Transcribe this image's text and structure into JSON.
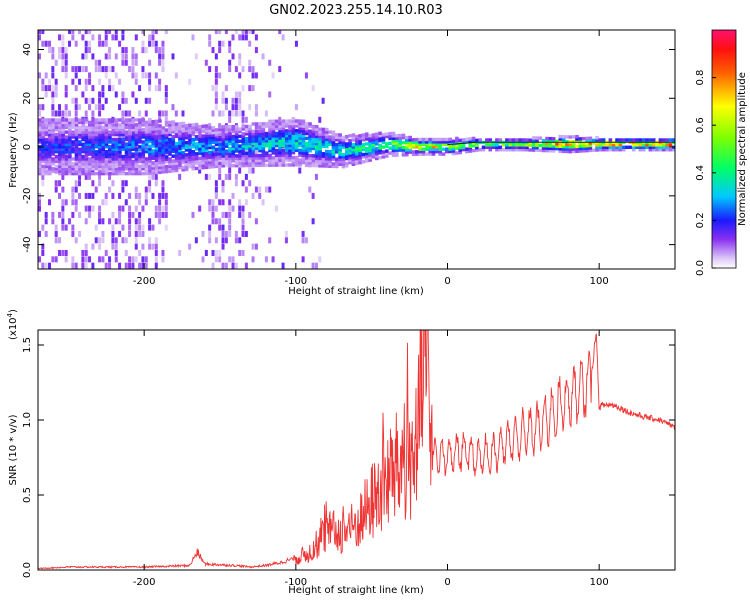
{
  "title": "GN02.2023.255.14.10.R03",
  "colors": {
    "snr_line": "#ef3434",
    "ridge": "#ff2a2a",
    "background": "#ffffff"
  },
  "chart_data": [
    {
      "type": "heatmap",
      "xlabel": "Height of straight line (km)",
      "ylabel": "Frequency (Hz)",
      "xlim": [
        -270,
        150
      ],
      "ylim": [
        -50,
        48
      ],
      "x_ticks": [
        -200,
        -100,
        0,
        100
      ],
      "y_ticks": [
        -40,
        -20,
        0,
        20,
        40
      ],
      "x_tick_labels": [
        "-200",
        "-100",
        "0",
        "100"
      ],
      "y_tick_labels": [
        "-40",
        "-20",
        "0",
        "20",
        "40"
      ],
      "grid": false,
      "colorbar": {
        "label": "Normalized spectral amplitude",
        "range": [
          0,
          1
        ],
        "ticks": [
          0.0,
          0.2,
          0.4,
          0.6,
          0.8
        ],
        "tick_labels": [
          "0.0",
          "0.2",
          "0.4",
          "0.6",
          "0.8"
        ]
      },
      "ridge": {
        "description_points_x": [
          -270,
          -200,
          -150,
          -100,
          -70,
          -40,
          -20,
          0,
          20,
          50,
          80,
          100,
          150
        ],
        "peak_frequency_hz": [
          0,
          0,
          0,
          2,
          -2,
          1,
          0,
          0,
          1,
          1,
          1,
          1,
          1
        ],
        "band_halfwidth_hz": [
          7,
          7,
          5,
          6,
          4,
          3,
          2,
          2,
          1.5,
          1.5,
          2,
          1.5,
          1.5
        ],
        "amplitude": [
          0.2,
          0.25,
          0.3,
          0.35,
          0.35,
          0.45,
          0.7,
          0.6,
          0.5,
          0.55,
          0.8,
          0.7,
          0.8
        ]
      }
    },
    {
      "type": "line",
      "xlabel": "Height of straight line (km)",
      "ylabel": "SNR (10 * v/v)",
      "y_multiplier": "(x10",
      "y_multiplier_exp": "4",
      "y_multiplier_close": ")",
      "xlim": [
        -270,
        150
      ],
      "ylim": [
        0,
        1.6
      ],
      "x_ticks": [
        -200,
        -100,
        0,
        100
      ],
      "y_ticks": [
        0.0,
        0.5,
        1.0,
        1.5
      ],
      "x_tick_labels": [
        "-200",
        "-100",
        "0",
        "100"
      ],
      "y_tick_labels": [
        "0.0",
        "0.5",
        "1.0",
        "1.5"
      ],
      "grid": false,
      "series": [
        {
          "x": [
            -270,
            -250,
            -200,
            -170,
            -165,
            -160,
            -140,
            -130,
            -120,
            -110,
            -100,
            -90,
            -80,
            -70,
            -60,
            -50,
            -40,
            -30,
            -20,
            -15,
            -10,
            0,
            10,
            20,
            30,
            40,
            50,
            60,
            70,
            80,
            90,
            95,
            98,
            100,
            102,
            110,
            120,
            130,
            140,
            150
          ],
          "y": [
            0.01,
            0.02,
            0.02,
            0.03,
            0.12,
            0.04,
            0.03,
            0.02,
            0.03,
            0.05,
            0.08,
            0.12,
            0.25,
            0.25,
            0.3,
            0.45,
            0.6,
            0.7,
            0.8,
            1.42,
            0.75,
            0.75,
            0.8,
            0.75,
            0.78,
            0.85,
            0.9,
            0.95,
            1.05,
            1.15,
            1.2,
            1.3,
            1.6,
            1.08,
            1.1,
            1.1,
            1.05,
            1.02,
            1.0,
            0.95
          ]
        }
      ]
    }
  ]
}
